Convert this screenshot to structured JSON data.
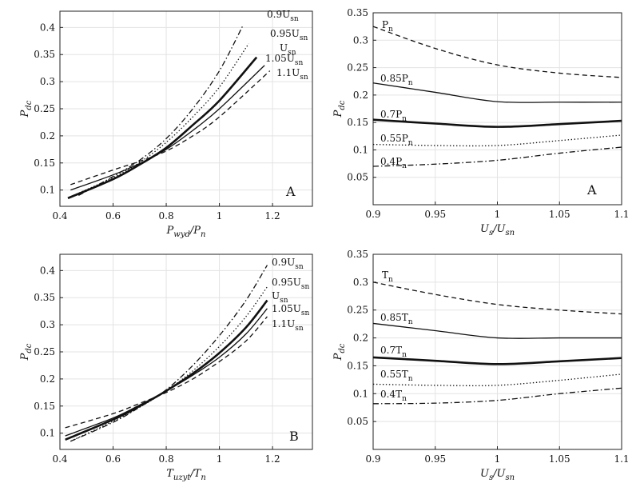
{
  "chart_data": [
    {
      "type": "line",
      "xlabel": "P_wyd/P_n",
      "ylabel": "P_dc",
      "xlim": [
        0.4,
        1.35
      ],
      "ylim": [
        0.07,
        0.43
      ],
      "xticks": [
        0.4,
        0.6,
        0.8,
        1.0,
        1.2
      ],
      "yticks": [
        0.1,
        0.15,
        0.2,
        0.25,
        0.3,
        0.35,
        0.4
      ],
      "xtick_labels": [
        "0.4",
        "0.6",
        "0.8",
        "1",
        "1.2"
      ],
      "ytick_labels": [
        "0.1",
        "0.15",
        "0.2",
        "0.25",
        "0.3",
        "0.35",
        "0.4"
      ],
      "grid": true,
      "panel_letter": "A",
      "series": [
        {
          "name": "0.9U_sn",
          "dash": "dashdot",
          "width": 1.3,
          "x": [
            0.47,
            0.6,
            0.7,
            0.8,
            0.9,
            1.0,
            1.09
          ],
          "y": [
            0.09,
            0.125,
            0.155,
            0.195,
            0.25,
            0.32,
            0.405
          ]
        },
        {
          "name": "0.95U_sn",
          "dash": "dotted",
          "width": 1.3,
          "x": [
            0.45,
            0.6,
            0.7,
            0.8,
            0.9,
            1.0,
            1.11
          ],
          "y": [
            0.09,
            0.123,
            0.151,
            0.188,
            0.235,
            0.29,
            0.37
          ]
        },
        {
          "name": "U_sn",
          "dash": "solid",
          "width": 2.6,
          "x": [
            0.43,
            0.6,
            0.7,
            0.8,
            0.9,
            1.0,
            1.14
          ],
          "y": [
            0.085,
            0.12,
            0.147,
            0.178,
            0.22,
            0.265,
            0.345
          ]
        },
        {
          "name": "1.05U_sn",
          "dash": "solid",
          "width": 1.3,
          "x": [
            0.44,
            0.6,
            0.7,
            0.8,
            0.9,
            1.0,
            1.17
          ],
          "y": [
            0.1,
            0.128,
            0.149,
            0.175,
            0.21,
            0.25,
            0.33
          ]
        },
        {
          "name": "1.1U_sn",
          "dash": "dashed",
          "width": 1.3,
          "x": [
            0.44,
            0.6,
            0.7,
            0.8,
            0.9,
            1.0,
            1.19
          ],
          "y": [
            0.11,
            0.137,
            0.153,
            0.172,
            0.2,
            0.235,
            0.32
          ]
        }
      ]
    },
    {
      "type": "line",
      "xlabel": "U_s/U_sn",
      "ylabel": "P_dc",
      "xlim": [
        0.9,
        1.1
      ],
      "ylim": [
        0.0,
        0.35
      ],
      "xticks": [
        0.9,
        0.95,
        1.0,
        1.05,
        1.1
      ],
      "yticks": [
        0.05,
        0.1,
        0.15,
        0.2,
        0.25,
        0.3,
        0.35
      ],
      "xtick_labels": [
        "0.9",
        "0.95",
        "1",
        "1.05",
        "1.1"
      ],
      "ytick_labels": [
        "0.05",
        "0.1",
        "0.15",
        "0.2",
        "0.25",
        "0.3",
        "0.35"
      ],
      "grid": true,
      "panel_letter": "A",
      "series": [
        {
          "name": "P_n",
          "dash": "dashed",
          "width": 1.3,
          "x": [
            0.9,
            0.95,
            1.0,
            1.05,
            1.1
          ],
          "y": [
            0.325,
            0.285,
            0.255,
            0.24,
            0.232
          ]
        },
        {
          "name": "0.85P_n",
          "dash": "solid",
          "width": 1.3,
          "x": [
            0.9,
            0.95,
            1.0,
            1.05,
            1.1
          ],
          "y": [
            0.222,
            0.205,
            0.188,
            0.187,
            0.187
          ]
        },
        {
          "name": "0.7P_n",
          "dash": "solid",
          "width": 2.6,
          "x": [
            0.9,
            0.95,
            1.0,
            1.05,
            1.1
          ],
          "y": [
            0.155,
            0.148,
            0.142,
            0.147,
            0.153
          ]
        },
        {
          "name": "0.55P_n",
          "dash": "dotted",
          "width": 1.3,
          "x": [
            0.9,
            0.95,
            1.0,
            1.05,
            1.1
          ],
          "y": [
            0.11,
            0.108,
            0.108,
            0.117,
            0.127
          ]
        },
        {
          "name": "0.4P_n",
          "dash": "dashdot",
          "width": 1.3,
          "x": [
            0.9,
            0.95,
            1.0,
            1.05,
            1.1
          ],
          "y": [
            0.07,
            0.074,
            0.081,
            0.094,
            0.105
          ]
        }
      ]
    },
    {
      "type": "line",
      "xlabel": "T_uzyt/T_n",
      "ylabel": "P_dc",
      "xlim": [
        0.4,
        1.35
      ],
      "ylim": [
        0.07,
        0.43
      ],
      "xticks": [
        0.4,
        0.6,
        0.8,
        1.0,
        1.2
      ],
      "yticks": [
        0.1,
        0.15,
        0.2,
        0.25,
        0.3,
        0.35,
        0.4
      ],
      "xtick_labels": [
        "0.4",
        "0.6",
        "0.8",
        "1",
        "1.2"
      ],
      "ytick_labels": [
        "0.1",
        "0.15",
        "0.2",
        "0.25",
        "0.3",
        "0.35",
        "0.4"
      ],
      "grid": true,
      "panel_letter": "B",
      "series": [
        {
          "name": "0.9U_sn",
          "dash": "dashdot",
          "width": 1.3,
          "x": [
            0.44,
            0.6,
            0.7,
            0.8,
            0.9,
            1.0,
            1.1,
            1.18
          ],
          "y": [
            0.085,
            0.12,
            0.148,
            0.18,
            0.225,
            0.28,
            0.345,
            0.41
          ]
        },
        {
          "name": "0.95U_sn",
          "dash": "dotted",
          "width": 1.3,
          "x": [
            0.44,
            0.6,
            0.7,
            0.8,
            0.9,
            1.0,
            1.1,
            1.18
          ],
          "y": [
            0.085,
            0.122,
            0.148,
            0.178,
            0.215,
            0.26,
            0.315,
            0.37
          ]
        },
        {
          "name": "U_sn",
          "dash": "solid",
          "width": 2.6,
          "x": [
            0.42,
            0.6,
            0.7,
            0.8,
            0.9,
            1.0,
            1.1,
            1.18
          ],
          "y": [
            0.088,
            0.125,
            0.15,
            0.178,
            0.21,
            0.248,
            0.295,
            0.345
          ]
        },
        {
          "name": "1.05U_sn",
          "dash": "solid",
          "width": 1.3,
          "x": [
            0.42,
            0.6,
            0.7,
            0.8,
            0.9,
            1.0,
            1.1,
            1.18
          ],
          "y": [
            0.095,
            0.128,
            0.152,
            0.178,
            0.207,
            0.24,
            0.283,
            0.33
          ]
        },
        {
          "name": "1.1U_sn",
          "dash": "dashed",
          "width": 1.3,
          "x": [
            0.42,
            0.6,
            0.7,
            0.8,
            0.9,
            1.0,
            1.1,
            1.18
          ],
          "y": [
            0.11,
            0.136,
            0.155,
            0.175,
            0.2,
            0.232,
            0.27,
            0.315
          ]
        }
      ]
    },
    {
      "type": "line",
      "xlabel": "U_s/U_sn",
      "ylabel": "P_dc",
      "xlim": [
        0.9,
        1.1
      ],
      "ylim": [
        0.0,
        0.35
      ],
      "xticks": [
        0.9,
        0.95,
        1.0,
        1.05,
        1.1
      ],
      "yticks": [
        0.05,
        0.1,
        0.15,
        0.2,
        0.25,
        0.3,
        0.35
      ],
      "xtick_labels": [
        "0.9",
        "0.95",
        "1",
        "1.05",
        "1.1"
      ],
      "ytick_labels": [
        "0.05",
        "0.1",
        "0.15",
        "0.2",
        "0.25",
        "0.3",
        "0.35"
      ],
      "grid": true,
      "panel_letter": "",
      "series": [
        {
          "name": "T_n",
          "dash": "dashed",
          "width": 1.3,
          "x": [
            0.9,
            0.95,
            1.0,
            1.05,
            1.1
          ],
          "y": [
            0.3,
            0.278,
            0.26,
            0.25,
            0.243
          ]
        },
        {
          "name": "0.85T_n",
          "dash": "solid",
          "width": 1.3,
          "x": [
            0.9,
            0.95,
            1.0,
            1.05,
            1.1
          ],
          "y": [
            0.226,
            0.213,
            0.2,
            0.2,
            0.2
          ]
        },
        {
          "name": "0.7T_n",
          "dash": "solid",
          "width": 2.6,
          "x": [
            0.9,
            0.95,
            1.0,
            1.05,
            1.1
          ],
          "y": [
            0.165,
            0.159,
            0.153,
            0.158,
            0.164
          ]
        },
        {
          "name": "0.55T_n",
          "dash": "dotted",
          "width": 1.3,
          "x": [
            0.9,
            0.95,
            1.0,
            1.05,
            1.1
          ],
          "y": [
            0.117,
            0.115,
            0.115,
            0.124,
            0.135
          ]
        },
        {
          "name": "0.4T_n",
          "dash": "dashdot",
          "width": 1.3,
          "x": [
            0.9,
            0.95,
            1.0,
            1.05,
            1.1
          ],
          "y": [
            0.082,
            0.083,
            0.088,
            0.1,
            0.11
          ]
        }
      ]
    }
  ]
}
